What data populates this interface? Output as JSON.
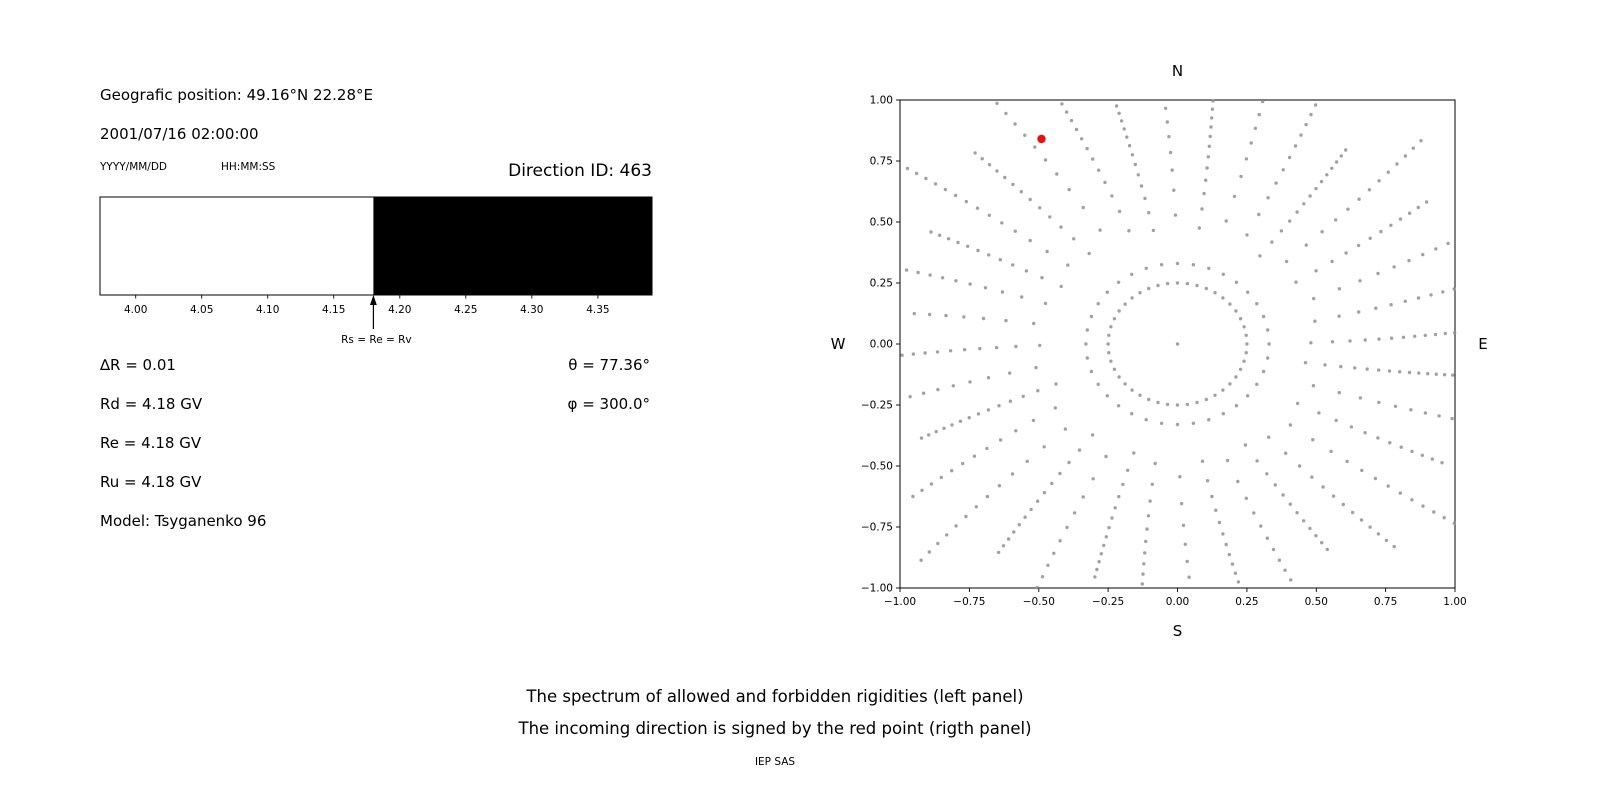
{
  "page": {
    "background": "#ffffff",
    "text_color": "#000000"
  },
  "header": {
    "geographic_position": "Geografic position: 49.16°N 22.28°E",
    "datetime": "2001/07/16 02:00:00",
    "date_format_label": "YYYY/MM/DD",
    "time_format_label": "HH:MM:SS",
    "direction_id": "Direction ID: 463"
  },
  "parameters": {
    "delta_r": "∆R = 0.01",
    "rd": "Rd = 4.18 GV",
    "re": "Re = 4.18 GV",
    "ru": "Ru = 4.18 GV",
    "model": "Model: Tsyganenko 96",
    "theta": "θ = 77.36°",
    "phi": "φ = 300.0°"
  },
  "footer": {
    "caption_line1": "The spectrum of allowed and forbidden rigidities (left panel)",
    "caption_line2": "The incoming direction is signed by the red point (rigth panel)",
    "credit": "IEP SAS"
  },
  "chart_data": [
    {
      "id": "rigidity-spectrum",
      "type": "area",
      "title": "",
      "description": "Spectrum of allowed (white) and forbidden (black) rigidities; boundary at 4.18 GV",
      "xlim": [
        3.973,
        4.391
      ],
      "x_ticks": [
        {
          "value": 4.0,
          "label": "4.00"
        },
        {
          "value": 4.05,
          "label": "4.05"
        },
        {
          "value": 4.1,
          "label": "4.10"
        },
        {
          "value": 4.15,
          "label": "4.15"
        },
        {
          "value": 4.2,
          "label": "4.20"
        },
        {
          "value": 4.25,
          "label": "4.25"
        },
        {
          "value": 4.3,
          "label": "4.30"
        },
        {
          "value": 4.35,
          "label": "4.35"
        }
      ],
      "segments": [
        {
          "from": 3.973,
          "to": 4.18,
          "state": "allowed",
          "color": "#ffffff"
        },
        {
          "from": 4.18,
          "to": 4.391,
          "state": "forbidden",
          "color": "#000000"
        }
      ],
      "marker": {
        "x": 4.18,
        "label": "Rs = Re = Rv"
      },
      "border_color": "#000000"
    },
    {
      "id": "incoming-direction-map",
      "type": "scatter",
      "title": "",
      "description": "Direction map: gray dots form radial spokes, an inner dotted ring and a center dot; the red point marks the incoming direction",
      "xlim": [
        -1,
        1
      ],
      "ylim": [
        -1,
        1
      ],
      "x_ticks": [
        {
          "value": -1.0,
          "label": "−1.00"
        },
        {
          "value": -0.75,
          "label": "−0.75"
        },
        {
          "value": -0.5,
          "label": "−0.50"
        },
        {
          "value": -0.25,
          "label": "−0.25"
        },
        {
          "value": 0.0,
          "label": "0.00"
        },
        {
          "value": 0.25,
          "label": "0.25"
        },
        {
          "value": 0.5,
          "label": "0.50"
        },
        {
          "value": 0.75,
          "label": "0.75"
        },
        {
          "value": 1.0,
          "label": "1.00"
        }
      ],
      "y_ticks": [
        {
          "value": -1.0,
          "label": "−1.00"
        },
        {
          "value": -0.75,
          "label": "−0.75"
        },
        {
          "value": -0.5,
          "label": "−0.50"
        },
        {
          "value": -0.25,
          "label": "−0.25"
        },
        {
          "value": 0.0,
          "label": "0.00"
        },
        {
          "value": 0.25,
          "label": "0.25"
        },
        {
          "value": 0.5,
          "label": "0.50"
        },
        {
          "value": 0.75,
          "label": "0.75"
        },
        {
          "value": 1.0,
          "label": "1.00"
        }
      ],
      "compass": {
        "top": "N",
        "bottom": "S",
        "left": "W",
        "right": "E"
      },
      "dot_color": "#8c8c8c",
      "red_point": {
        "x": -0.49,
        "y": 0.84,
        "color": "#e8110c"
      },
      "pattern": {
        "note": "approximation of the gray-dot field: 36 straightish radial spokes every 10°, dot spacing densifying outward, clipped at the axes box; inner dotted ring at r=0.25; single center dot",
        "center_dot": true,
        "inner_ring": {
          "radius": 0.25,
          "count": 44
        },
        "spokes": {
          "count": 36,
          "r_start": 0.33,
          "r_end_min": 1.0,
          "r_end_max": 1.28,
          "dots_per_spoke": 13,
          "density_power": 0.6,
          "curvature_deg_per_r": 4
        }
      }
    }
  ]
}
